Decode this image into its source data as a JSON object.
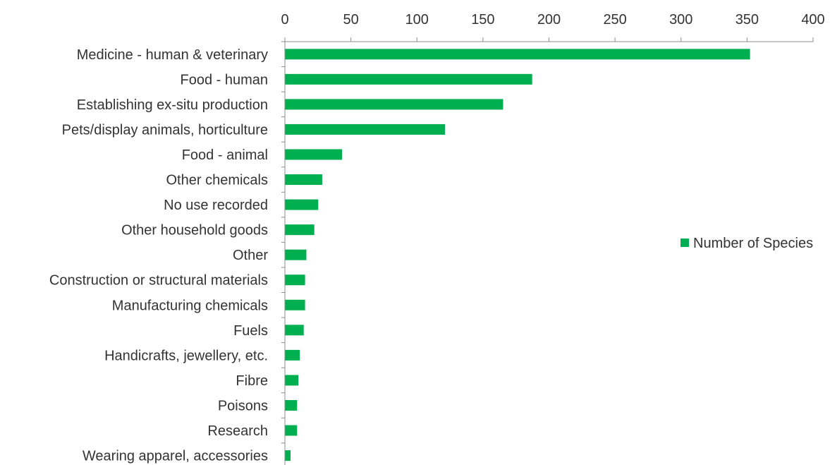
{
  "chart_data": {
    "type": "bar",
    "orientation": "horizontal",
    "categories": [
      "Medicine - human & veterinary",
      "Food - human",
      "Establishing ex-situ production",
      "Pets/display animals, horticulture",
      "Food - animal",
      "Other chemicals",
      "No use recorded",
      "Other household goods",
      "Other",
      "Construction or structural materials",
      "Manufacturing chemicals",
      "Fuels",
      "Handicrafts, jewellery, etc.",
      "Fibre",
      "Poisons",
      "Research",
      "Wearing apparel, accessories"
    ],
    "series": [
      {
        "name": "Number of Species",
        "color": "#00b050",
        "values": [
          352,
          187,
          165,
          121,
          43,
          28,
          25,
          22,
          16,
          15,
          15,
          14,
          11,
          10,
          9,
          9,
          4
        ]
      }
    ],
    "xlim": [
      0,
      400
    ],
    "x_ticks": [
      "0",
      "50",
      "100",
      "150",
      "200",
      "250",
      "300",
      "350",
      "400"
    ],
    "x_tick_values": [
      0,
      50,
      100,
      150,
      200,
      250,
      300,
      350,
      400
    ],
    "x_axis_position": "top",
    "title": "",
    "xlabel": "",
    "ylabel": "",
    "grid": false,
    "legend_position": "right"
  }
}
